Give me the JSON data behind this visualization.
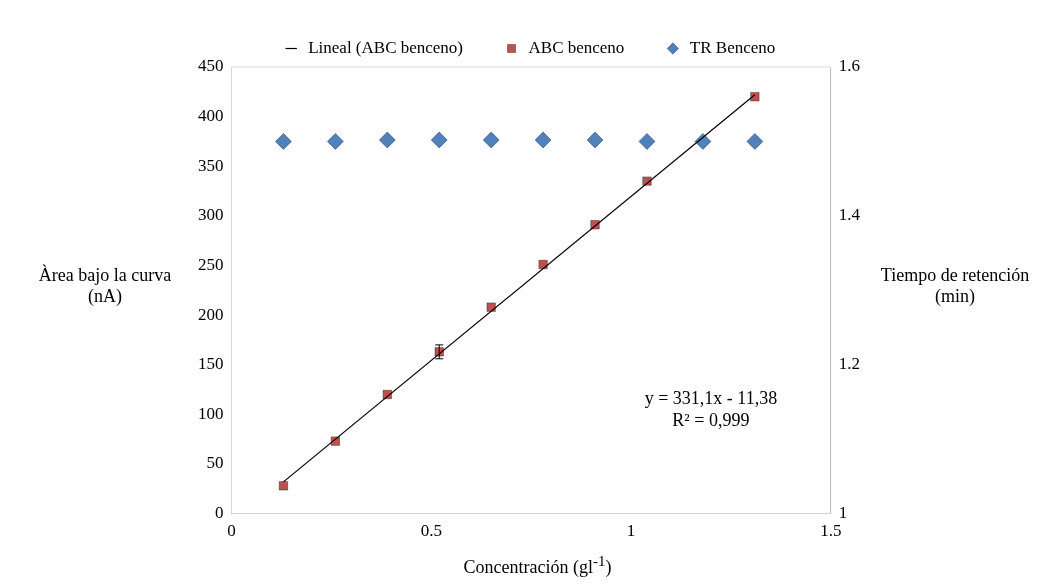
{
  "chart_data": {
    "type": "scatter",
    "xlabel": "Concentración (gl$^{-1}$)",
    "ylabel": "Àrea bajo la curva (nA)",
    "y2label": "Tiempo de retención (min)",
    "x": [
      0.13,
      0.26,
      0.39,
      0.52,
      0.65,
      0.78,
      0.91,
      1.04,
      1.18,
      1.31
    ],
    "series": [
      {
        "name": "ABC benceno",
        "color": "#c0504d",
        "marker": "square",
        "values": [
          28,
          73,
          120,
          163,
          208,
          251,
          291,
          335,
          null,
          420
        ],
        "errors": [
          null,
          null,
          null,
          7,
          null,
          null,
          null,
          null,
          null,
          null
        ]
      },
      {
        "name": "TR Benceno",
        "color": "#4f81bd",
        "marker": "diamond",
        "axis": "y2",
        "values": [
          1.5,
          1.5,
          1.502,
          1.502,
          1.502,
          1.502,
          1.502,
          1.5,
          1.5,
          1.5
        ]
      },
      {
        "name": "Lineal (ABC benceno)",
        "type": "line",
        "color": "#000000",
        "marker": "none",
        "x": [
          0.13,
          1.31
        ],
        "values": [
          32,
          422
        ]
      }
    ],
    "xlim": [
      0,
      1.5
    ],
    "xticks": [
      0,
      0.5,
      1,
      1.5
    ],
    "ylim": [
      0,
      450
    ],
    "yticks": [
      0,
      50,
      100,
      150,
      200,
      250,
      300,
      350,
      400,
      450
    ],
    "y2lim": [
      1,
      1.6
    ],
    "y2ticks": [
      1,
      1.2,
      1.4,
      1.6
    ],
    "annotations": [
      "y = 331,1x - 11,38",
      "R² = 0,999"
    ],
    "legend": "top",
    "grid": false
  }
}
